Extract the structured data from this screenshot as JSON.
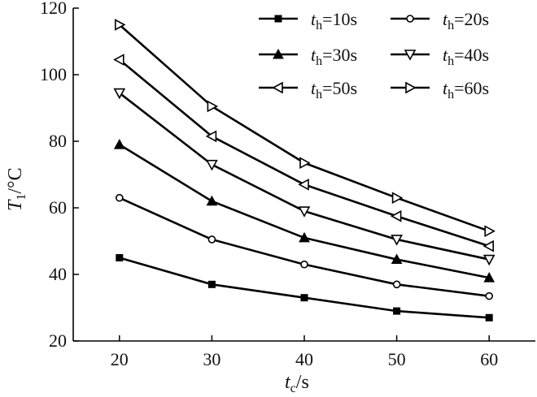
{
  "chart_data": {
    "type": "line",
    "x": [
      20,
      30,
      40,
      50,
      60
    ],
    "xlim": [
      15,
      65
    ],
    "ylim": [
      20,
      120
    ],
    "xticks": [
      20,
      30,
      40,
      50,
      60
    ],
    "yticks": [
      20,
      40,
      60,
      80,
      100,
      120
    ],
    "xlabel": {
      "symbol": "t",
      "subscript": "c",
      "unit": "/s"
    },
    "ylabel": {
      "symbol": "T",
      "subscript": "1",
      "unit": "/°C"
    },
    "grid": false,
    "legend_position": "top-right",
    "series": [
      {
        "symbol": "t",
        "subscript": "h",
        "value": "=10s",
        "marker": "square-filled",
        "values": [
          45,
          37,
          33,
          29,
          27
        ]
      },
      {
        "symbol": "t",
        "subscript": "h",
        "value": "=20s",
        "marker": "circle-open",
        "values": [
          63,
          50.5,
          43,
          37,
          33.5
        ]
      },
      {
        "symbol": "t",
        "subscript": "h",
        "value": "=30s",
        "marker": "triangle-up-filled",
        "values": [
          79,
          62,
          51,
          44.5,
          39
        ]
      },
      {
        "symbol": "t",
        "subscript": "h",
        "value": "=40s",
        "marker": "triangle-down-open",
        "values": [
          94.5,
          73,
          59,
          50.5,
          44.5
        ]
      },
      {
        "symbol": "t",
        "subscript": "h",
        "value": "=50s",
        "marker": "triangle-left-open",
        "values": [
          104.5,
          81.5,
          67,
          57.5,
          48.5
        ]
      },
      {
        "symbol": "t",
        "subscript": "h",
        "value": "=60s",
        "marker": "triangle-right-open",
        "values": [
          115,
          90.5,
          73.5,
          63,
          53
        ]
      }
    ]
  }
}
